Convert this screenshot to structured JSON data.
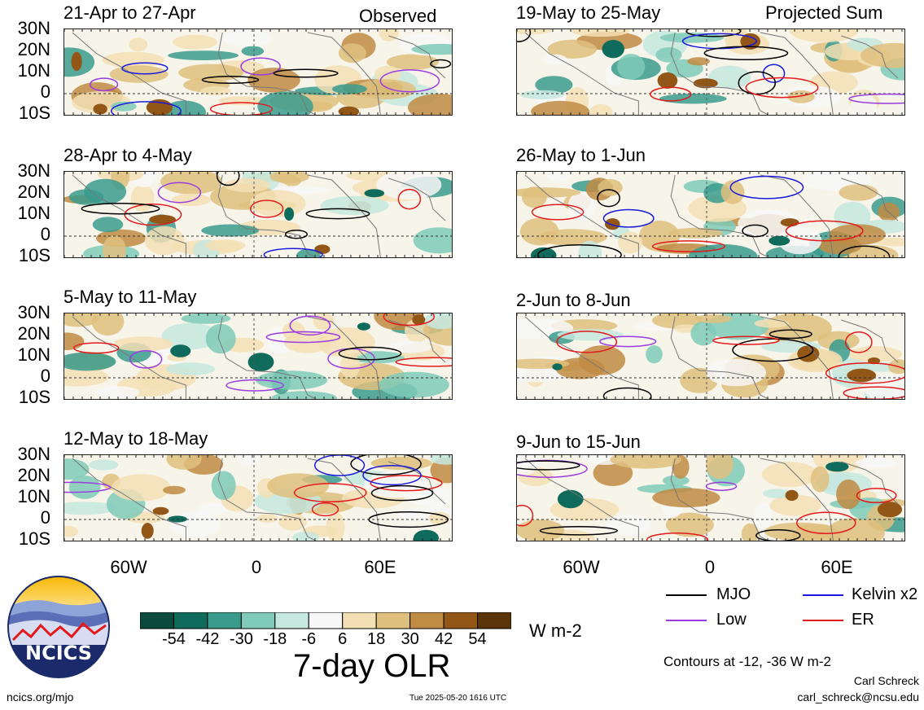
{
  "header": {
    "left_tag": "Observed",
    "right_tag": "Projected Sum"
  },
  "panels_left": [
    {
      "title": "21-Apr to 27-Apr"
    },
    {
      "title": "28-Apr to 4-May"
    },
    {
      "title": "5-May to 11-May"
    },
    {
      "title": "12-May to 18-May"
    }
  ],
  "panels_right": [
    {
      "title": "19-May to 25-May"
    },
    {
      "title": "26-May to 1-Jun"
    },
    {
      "title": "2-Jun to 8-Jun"
    },
    {
      "title": "9-Jun to 15-Jun"
    }
  ],
  "lat_labels": [
    "30N",
    "20N",
    "10N",
    "0",
    "10S"
  ],
  "lon_labels": [
    "60W",
    "0",
    "60E"
  ],
  "colorbar": {
    "labels": [
      "-54",
      "-42",
      "-30",
      "-18",
      "-6",
      "6",
      "18",
      "30",
      "42",
      "54"
    ],
    "colors": [
      "#0b4a3c",
      "#0f6b5b",
      "#3a9b8d",
      "#7fcab9",
      "#c6e8df",
      "#f7f7f7",
      "#f3dfb4",
      "#dfbf7e",
      "#c08b43",
      "#925617",
      "#5a3509"
    ],
    "units": "W m-2",
    "title": "7-day OLR"
  },
  "legend": {
    "items": [
      {
        "label": "MJO",
        "color": "#000000"
      },
      {
        "label": "Kelvin x2",
        "color": "#1a1adc"
      },
      {
        "label": "Low",
        "color": "#9b3be0"
      },
      {
        "label": "ER",
        "color": "#e31a1c"
      }
    ],
    "note": "Contours at -12, -36 W m-2"
  },
  "logo": {
    "text": "NCICS"
  },
  "footer": {
    "url": "ncics.org/mjo",
    "timestamp": "Tue 2025-05-20 1616 UTC",
    "author": "Carl Schreck",
    "email": "carl_schreck@ncsu.edu"
  }
}
